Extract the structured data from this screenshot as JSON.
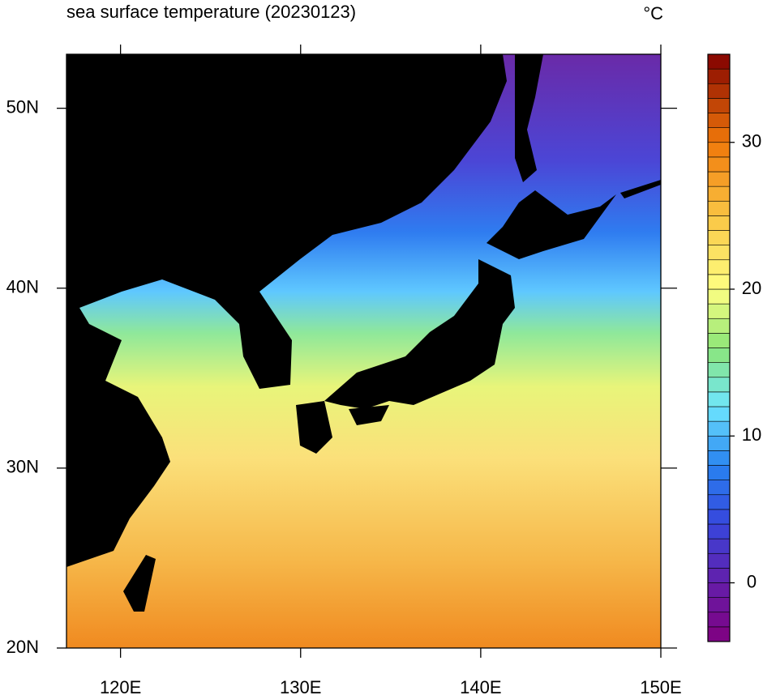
{
  "chart_data": {
    "type": "map",
    "title": "sea surface temperature (20230123)",
    "unit": "°C",
    "xlim": [
      117,
      150
    ],
    "ylim": [
      20,
      53
    ],
    "xticks": [
      {
        "value": 120,
        "label": "120E"
      },
      {
        "value": 130,
        "label": "130E"
      },
      {
        "value": 140,
        "label": "140E"
      },
      {
        "value": 150,
        "label": "150E"
      }
    ],
    "yticks": [
      {
        "value": 20,
        "label": "20N"
      },
      {
        "value": 30,
        "label": "30N"
      },
      {
        "value": 40,
        "label": "40N"
      },
      {
        "value": 50,
        "label": "50N"
      }
    ],
    "colorbar": {
      "lim": [
        -4,
        36
      ],
      "ticks": [
        0,
        10,
        20,
        30
      ]
    }
  }
}
